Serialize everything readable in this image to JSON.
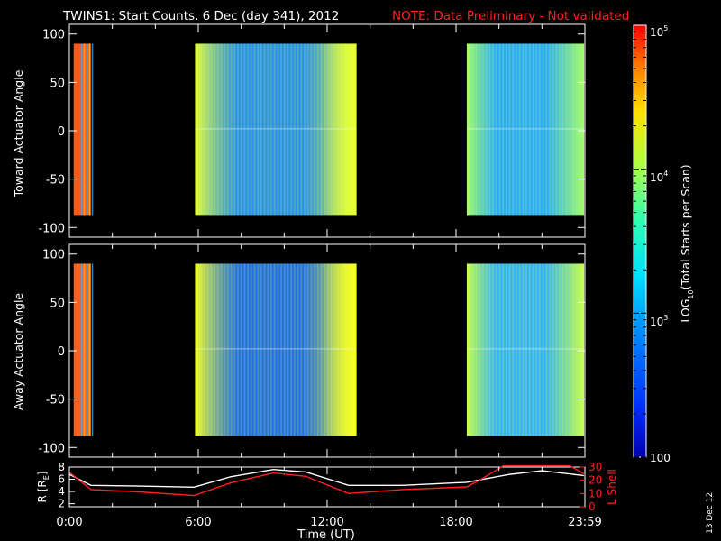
{
  "header": {
    "title": "TWINS1: Start Counts.  6 Dec (day 341), 2012",
    "note": "NOTE: Data Preliminary - Not validated",
    "note_color": "#ff2020"
  },
  "footer": {
    "date_stamp": "13 Dec 12"
  },
  "chart_data": [
    {
      "type": "heatmap",
      "panel": "toward",
      "ylabel": "Toward Actuator Angle",
      "ylim": [
        -110,
        110
      ],
      "yticks": [
        100,
        50,
        0,
        -50,
        -100
      ],
      "xlim": [
        0,
        24
      ],
      "xticks": [
        0,
        6,
        12,
        18,
        24
      ],
      "data_blocks_hours": [
        [
          0.2,
          1.0
        ],
        [
          5.85,
          13.35
        ],
        [
          18.5,
          23.95
        ]
      ],
      "angle_range": [
        -88,
        90
      ],
      "colors": {
        "segment1": "#f85a18",
        "segment2_edges": "#e6ff38",
        "segment2_core": "#1e8cf5",
        "segment3_edges": "#a6ff6a",
        "segment3_core": "#28a8ff"
      }
    },
    {
      "type": "heatmap",
      "panel": "away",
      "ylabel": "Away Actuator Angle",
      "ylim": [
        -110,
        110
      ],
      "yticks": [
        100,
        50,
        0,
        -50,
        -100
      ],
      "xlim": [
        0,
        24
      ],
      "xticks": [
        0,
        6,
        12,
        18,
        24
      ],
      "data_blocks_hours": [
        [
          0.2,
          1.0
        ],
        [
          5.85,
          13.35
        ],
        [
          18.5,
          23.95
        ]
      ],
      "angle_range": [
        -88,
        90
      ],
      "colors": {
        "segment1": "#f86020",
        "segment2_edges": "#f4ff28",
        "segment2_core": "#1468f2",
        "segment3_edges": "#c8ff4c",
        "segment3_core": "#30b0ff"
      }
    },
    {
      "type": "line",
      "panel": "orbit",
      "ylabel_left": "R [R",
      "ylabel_left_sub": "E",
      "ylabel_left_close": "]",
      "ylabel_right": "L Shell",
      "ylim_left": [
        1.5,
        8
      ],
      "yticks_left": [
        2,
        4,
        6,
        8
      ],
      "ylim_right": [
        0,
        30
      ],
      "yticks_right": [
        0,
        10,
        20,
        30
      ],
      "xlabel": "Time (UT)",
      "xticklabels": [
        "0:00",
        "6:00",
        "12:00",
        "18:00",
        "23:59"
      ],
      "series": [
        {
          "axis": "left",
          "color": "#ffffff",
          "x": [
            0,
            1,
            3,
            5.8,
            7.5,
            9.5,
            11,
            13,
            15.5,
            18.5,
            20.5,
            22,
            23.95
          ],
          "y": [
            6.8,
            5.0,
            4.9,
            4.7,
            6.4,
            7.6,
            7.2,
            5.0,
            5.0,
            5.5,
            6.8,
            7.4,
            6.6
          ]
        },
        {
          "axis": "right",
          "color": "#ff2020",
          "x": [
            0,
            1,
            3,
            5.8,
            7.5,
            9.5,
            11,
            13,
            15.5,
            18.5,
            19.3,
            20.2,
            23.3,
            23.95
          ],
          "y": [
            26,
            13,
            11.5,
            8.5,
            18,
            25.5,
            23,
            10,
            13,
            15,
            22,
            31,
            31,
            25
          ]
        }
      ]
    },
    {
      "type": "colorbar",
      "label_main": "LOG",
      "label_sub": "10",
      "label_rest": "(Total Starts per Scan)",
      "range": [
        100,
        100000
      ],
      "tick_base": "10",
      "tick_exponents": [
        "5",
        "4",
        "3"
      ],
      "bottom_label": "100"
    }
  ]
}
